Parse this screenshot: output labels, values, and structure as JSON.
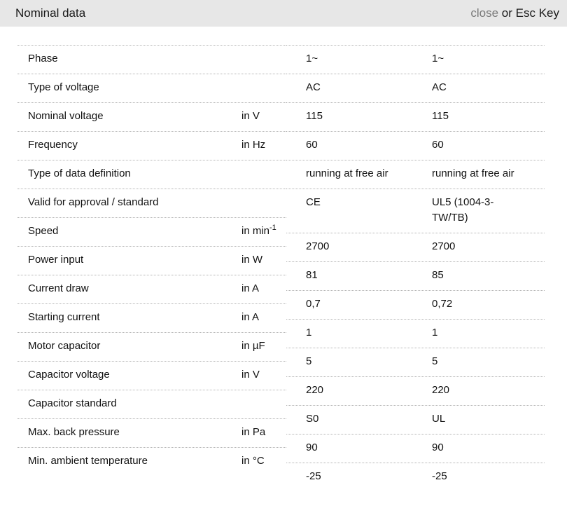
{
  "header": {
    "title": "Nominal data",
    "close_label": "close",
    "close_suffix": " or Esc Key"
  },
  "colors": {
    "header_bg": "#e7e7e7",
    "divider": "#b3b3b3",
    "close_link": "#7a7a7a",
    "text": "#111111"
  },
  "table": {
    "rows": [
      {
        "label": "Phase",
        "unit": "",
        "unit_sup": "",
        "values": [
          "1~",
          "1~"
        ]
      },
      {
        "label": "Type of voltage",
        "unit": "",
        "unit_sup": "",
        "values": [
          "AC",
          "AC"
        ]
      },
      {
        "label": "Nominal voltage",
        "unit": "in V",
        "unit_sup": "",
        "values": [
          "115",
          "115"
        ]
      },
      {
        "label": "Frequency",
        "unit": "in Hz",
        "unit_sup": "",
        "values": [
          "60",
          "60"
        ]
      },
      {
        "label": "Type of data definition",
        "unit": "",
        "unit_sup": "",
        "values": [
          "running at free air",
          "running at free air"
        ]
      },
      {
        "label": "Valid for approval / standard",
        "unit": "",
        "unit_sup": "",
        "values": [
          "CE",
          "UL5 (1004-3-TW/TB)"
        ]
      },
      {
        "label": "Speed",
        "unit": "in min",
        "unit_sup": "-1",
        "values": [
          "2700",
          "2700"
        ]
      },
      {
        "label": "Power input",
        "unit": "in W",
        "unit_sup": "",
        "values": [
          "81",
          "85"
        ]
      },
      {
        "label": "Current draw",
        "unit": "in A",
        "unit_sup": "",
        "values": [
          "0,7",
          "0,72"
        ]
      },
      {
        "label": "Starting current",
        "unit": "in A",
        "unit_sup": "",
        "values": [
          "1",
          "1"
        ]
      },
      {
        "label": "Motor capacitor",
        "unit": "in µF",
        "unit_sup": "",
        "values": [
          "5",
          "5"
        ]
      },
      {
        "label": "Capacitor voltage",
        "unit": "in V",
        "unit_sup": "",
        "values": [
          "220",
          "220"
        ]
      },
      {
        "label": "Capacitor standard",
        "unit": "",
        "unit_sup": "",
        "values": [
          "S0",
          "UL"
        ]
      },
      {
        "label": "Max. back pressure",
        "unit": "in Pa",
        "unit_sup": "",
        "values": [
          "90",
          "90"
        ]
      },
      {
        "label": "Min. ambient temperature",
        "unit": "in °C",
        "unit_sup": "",
        "values": [
          "-25",
          "-25"
        ]
      }
    ]
  }
}
